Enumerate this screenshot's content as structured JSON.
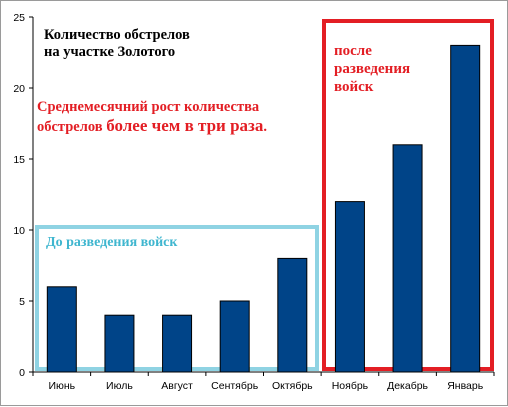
{
  "chart_data": {
    "type": "bar",
    "title": [
      "Количество обстрелов",
      "на участке Золотого"
    ],
    "categories": [
      "Июнь",
      "Июль",
      "Август",
      "Сентябрь",
      "Октябрь",
      "Ноябрь",
      "Декабрь",
      "Январь"
    ],
    "values": [
      6,
      4,
      4,
      5,
      8,
      12,
      16,
      23
    ],
    "ylim": [
      0,
      25
    ],
    "yticks": [
      0,
      5,
      10,
      15,
      20,
      25
    ],
    "bar_color": "#004488",
    "grid": false,
    "annotation": {
      "line1": "Среднемесячний рост количества",
      "line2_part1": "обстрелов ",
      "line2_part2": "более чем в три раза",
      "line2_part3": ".",
      "color": "#e31e24"
    },
    "groups": [
      {
        "label": "До разведения войск",
        "color": "#8fd3e3",
        "text_color": "#3fb6cf",
        "from": 0,
        "to": 4
      },
      {
        "label": [
          "после",
          "разведения",
          "войск"
        ],
        "color": "#e31e24",
        "text_color": "#e31e24",
        "from": 5,
        "to": 7
      }
    ]
  }
}
